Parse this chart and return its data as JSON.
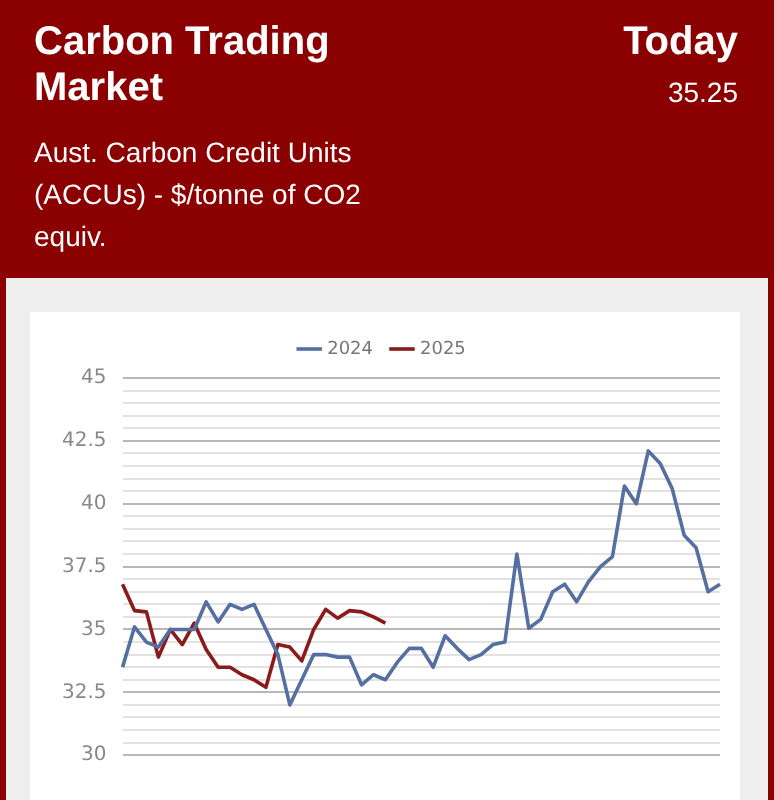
{
  "chart_data": {
    "type": "line",
    "title": "Carbon Trading Market",
    "subtitle": "Aust. Carbon Credit Units (ACCUs) - $/tonne of CO2 equiv.",
    "annotations": [
      "Today",
      "35.25"
    ],
    "categories": [
      null,
      null,
      null,
      null,
      null,
      null,
      null,
      null,
      null,
      null,
      null,
      null,
      null,
      null,
      null,
      null,
      null,
      null,
      null,
      null,
      null,
      null,
      null,
      null,
      null,
      null,
      null,
      null,
      null,
      null,
      null,
      null,
      null,
      null,
      null,
      null,
      null,
      null,
      null,
      null,
      null,
      null,
      null,
      null,
      null,
      null,
      null,
      null,
      null,
      null,
      null
    ],
    "series": [
      {
        "name": "2024",
        "color": "#5570a0",
        "values": [
          33.5,
          35.1,
          34.5,
          34.3,
          35,
          35,
          35,
          36.1,
          35.3,
          36,
          35.8,
          36,
          35,
          34,
          32,
          33,
          34,
          34,
          33.9,
          33.9,
          32.8,
          33.2,
          33,
          33.7,
          34.25,
          34.25,
          33.5,
          34.75,
          34.25,
          33.8,
          34,
          34.4,
          34.5,
          38,
          35.05,
          35.4,
          36.5,
          36.8,
          36.1,
          36.9,
          37.5,
          37.9,
          40.7,
          40,
          42.1,
          41.6,
          40.6,
          38.75,
          38.25,
          36.5,
          36.8
        ]
      },
      {
        "name": "2025",
        "color": "#8b1a1a",
        "values": [
          36.8,
          35.75,
          35.7,
          33.9,
          35,
          34.4,
          35.25,
          34.2,
          33.5,
          33.5,
          33.2,
          33,
          32.7,
          34.4,
          34.3,
          33.75,
          35,
          35.8,
          35.45,
          35.75,
          35.7,
          35.5,
          35.25,
          null,
          null,
          null,
          null,
          null,
          null,
          null,
          null,
          null,
          null,
          null,
          null,
          null,
          null,
          null,
          null,
          null,
          null,
          null,
          null,
          null,
          null,
          null,
          null,
          null,
          null,
          null,
          null
        ]
      }
    ],
    "ylim": [
      30,
      45
    ],
    "yticks": [
      30,
      {
        "value": 30.5,
        "label": null
      },
      {
        "value": 31,
        "label": null
      },
      {
        "value": 31.5,
        "label": null
      },
      {
        "value": 32,
        "label": null
      },
      32.5,
      {
        "value": 33,
        "label": null
      },
      {
        "value": 33.5,
        "label": null
      },
      {
        "value": 34,
        "label": null
      },
      {
        "value": 34.5,
        "label": null
      },
      35,
      {
        "value": 35.5,
        "label": null
      },
      {
        "value": 36,
        "label": null
      },
      {
        "value": 36.5,
        "label": null
      },
      {
        "value": 37,
        "label": null
      },
      37.5,
      {
        "value": 38,
        "label": null
      },
      {
        "value": 38.5,
        "label": null
      },
      {
        "value": 39,
        "label": null
      },
      {
        "value": 39.5,
        "label": null
      },
      40,
      {
        "value": 40.5,
        "label": null
      },
      {
        "value": 41,
        "label": null
      },
      {
        "value": 41.5,
        "label": null
      },
      {
        "value": 42,
        "label": null
      },
      42.5,
      {
        "value": 43,
        "label": null
      },
      {
        "value": 43.5,
        "label": null
      },
      {
        "value": 44,
        "label": null
      },
      {
        "value": 44.5,
        "label": null
      },
      45
    ],
    "grid": "y",
    "legend": "top",
    "marker": "none",
    "line_style": "solid"
  }
}
